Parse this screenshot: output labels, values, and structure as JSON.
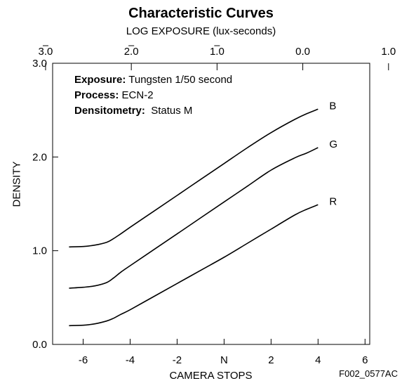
{
  "chart_data": {
    "type": "line",
    "title": "Characteristic Curves",
    "top_axis_label": "LOG EXPOSURE (lux-seconds)",
    "xlabel": "CAMERA STOPS",
    "ylabel": "DENSITY",
    "xlim": [
      -7.3,
      6.2
    ],
    "ylim": [
      0,
      3.0
    ],
    "x_ticks": [
      -6,
      -4,
      -2,
      0,
      2,
      4,
      6
    ],
    "x_tick_labels": [
      "-6",
      "-4",
      "-2",
      "N",
      "2",
      "4",
      "6"
    ],
    "y_ticks": [
      0,
      1.0,
      2.0,
      3.0
    ],
    "y_tick_labels": [
      "0.0",
      "1.0",
      "2.0",
      "3.0"
    ],
    "top_ticks": [
      {
        "stop": -7.6,
        "label": "3.0",
        "bar": true
      },
      {
        "stop": -3.95,
        "label": "2.0",
        "bar": true
      },
      {
        "stop": -0.3,
        "label": "1.0",
        "bar": true
      },
      {
        "stop": 3.35,
        "label": "0.0",
        "bar": false
      },
      {
        "stop": 7.0,
        "label": "1.0",
        "bar": false
      }
    ],
    "grid": false,
    "series": [
      {
        "name": "B",
        "x": [
          -6.6,
          -6.0,
          -5.5,
          -5.0,
          -4.7,
          -4.4,
          -4.0,
          -3.0,
          -2.0,
          -1.0,
          0.0,
          1.0,
          2.0,
          3.0,
          3.5,
          4.0
        ],
        "y": [
          1.04,
          1.045,
          1.06,
          1.09,
          1.13,
          1.18,
          1.25,
          1.42,
          1.59,
          1.76,
          1.93,
          2.1,
          2.26,
          2.4,
          2.46,
          2.51
        ]
      },
      {
        "name": "G",
        "x": [
          -6.6,
          -6.0,
          -5.5,
          -5.0,
          -4.7,
          -4.4,
          -4.0,
          -3.0,
          -2.0,
          -1.0,
          0.0,
          1.0,
          2.0,
          3.0,
          3.5,
          4.0
        ],
        "y": [
          0.6,
          0.61,
          0.625,
          0.66,
          0.71,
          0.77,
          0.84,
          1.01,
          1.18,
          1.35,
          1.52,
          1.69,
          1.86,
          1.99,
          2.04,
          2.1
        ]
      },
      {
        "name": "R",
        "x": [
          -6.6,
          -6.0,
          -5.5,
          -5.0,
          -4.7,
          -4.4,
          -4.0,
          -3.0,
          -2.0,
          -1.0,
          0.0,
          1.0,
          2.0,
          3.0,
          3.5,
          4.0
        ],
        "y": [
          0.2,
          0.205,
          0.22,
          0.25,
          0.28,
          0.32,
          0.37,
          0.51,
          0.65,
          0.79,
          0.93,
          1.08,
          1.23,
          1.38,
          1.44,
          1.49
        ]
      }
    ]
  },
  "info": {
    "exposure_label": "Exposure:",
    "exposure_value": "Tungsten 1/50 second",
    "process_label": "Process:",
    "process_value": "ECN-2",
    "densitometry_label": "Densitometry:",
    "densitometry_value": "Status M"
  },
  "figure_code": "F002_0577AC"
}
